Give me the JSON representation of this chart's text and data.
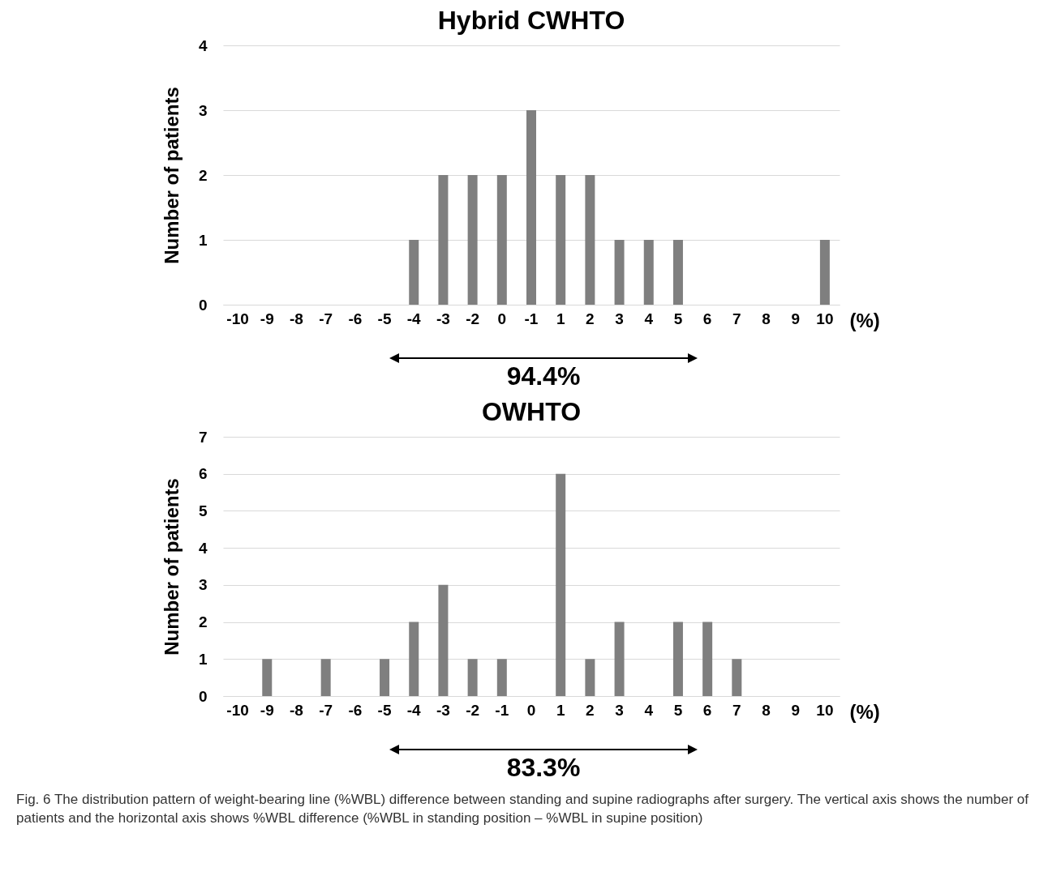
{
  "chart_data": [
    {
      "type": "bar",
      "title": "Hybrid CWHTO",
      "xlabel": "(%)",
      "ylabel": "Number of patients",
      "categories": [
        "-10",
        "-9",
        "-8",
        "-7",
        "-6",
        "-5",
        "-4",
        "-3",
        "-2",
        "0",
        "-1",
        "1",
        "2",
        "3",
        "4",
        "5",
        "6",
        "7",
        "8",
        "9",
        "10"
      ],
      "values": [
        0,
        0,
        0,
        0,
        0,
        0,
        1,
        2,
        2,
        2,
        3,
        2,
        2,
        1,
        1,
        1,
        0,
        0,
        0,
        0,
        1
      ],
      "color": "#7f7f7f",
      "ylim": [
        0,
        4
      ],
      "yticks": [
        0,
        1,
        2,
        3,
        4
      ],
      "grid": "y",
      "annotations": [
        "94.4%"
      ]
    },
    {
      "type": "bar",
      "title": "OWHTO",
      "xlabel": "(%)",
      "ylabel": "Number of patients",
      "categories": [
        "-10",
        "-9",
        "-8",
        "-7",
        "-6",
        "-5",
        "-4",
        "-3",
        "-2",
        "-1",
        "0",
        "1",
        "2",
        "3",
        "4",
        "5",
        "6",
        "7",
        "8",
        "9",
        "10"
      ],
      "values": [
        0,
        1,
        0,
        1,
        0,
        1,
        2,
        3,
        1,
        1,
        0,
        6,
        1,
        2,
        0,
        2,
        2,
        1,
        0,
        0,
        0
      ],
      "color": "#7f7f7f",
      "ylim": [
        0,
        7
      ],
      "yticks": [
        0,
        1,
        2,
        3,
        4,
        5,
        6,
        7
      ],
      "grid": "y",
      "annotations": [
        "83.3%",
        "Fig. 6 The distribution pattern of weight-bearing line (%WBL) difference between standing and supine radiographs after surgery. The vertical axis shows the number of patients and the horizontal axis shows %WBL difference (%WBL in standing position – %WBL in supine position)"
      ]
    }
  ]
}
